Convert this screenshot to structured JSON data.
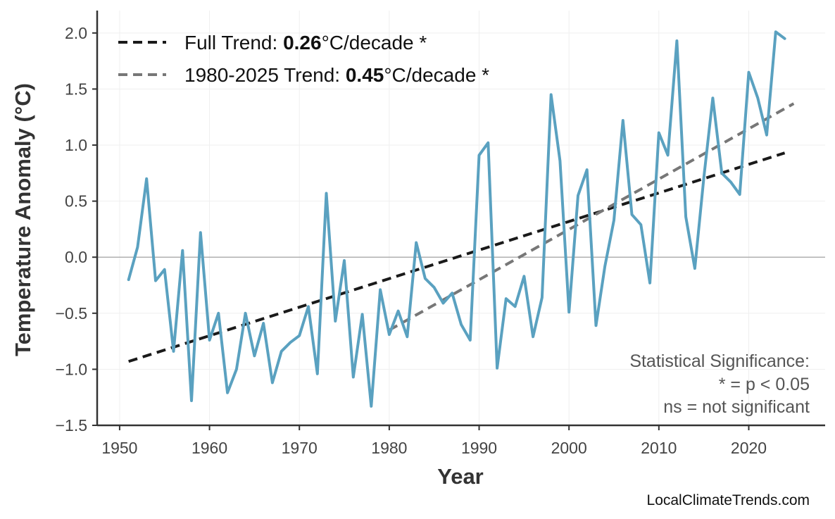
{
  "chart_data": {
    "type": "line",
    "xlabel": "Year",
    "ylabel": "Temperature Anomaly (°C)",
    "xlim": [
      1947.5,
      2028.5
    ],
    "ylim": [
      -1.5,
      2.2
    ],
    "x_ticks": [
      1950,
      1960,
      1970,
      1980,
      1990,
      2000,
      2010,
      2020
    ],
    "y_ticks": [
      -1.5,
      -1.0,
      -0.5,
      0.0,
      0.5,
      1.0,
      1.5,
      2.0
    ],
    "x_tick_labels": [
      "1950",
      "1960",
      "1970",
      "1980",
      "1990",
      "2000",
      "2010",
      "2020"
    ],
    "y_tick_labels": [
      "−1.5",
      "−1.0",
      "−0.5",
      "0.0",
      "0.5",
      "1.0",
      "1.5",
      "2.0"
    ],
    "grid": true,
    "zero_line": true,
    "legend_position": "top-left",
    "series": [
      {
        "type": "line",
        "color": "#5aa1c0",
        "x": [
          1951,
          1952,
          1953,
          1954,
          1955,
          1956,
          1957,
          1958,
          1959,
          1960,
          1961,
          1962,
          1963,
          1964,
          1965,
          1966,
          1967,
          1968,
          1969,
          1970,
          1971,
          1972,
          1973,
          1974,
          1975,
          1976,
          1977,
          1978,
          1979,
          1980,
          1981,
          1982,
          1983,
          1984,
          1985,
          1986,
          1987,
          1988,
          1989,
          1990,
          1991,
          1992,
          1993,
          1994,
          1995,
          1996,
          1997,
          1998,
          1999,
          2000,
          2001,
          2002,
          2003,
          2004,
          2005,
          2006,
          2007,
          2008,
          2009,
          2010,
          2011,
          2012,
          2013,
          2014,
          2015,
          2016,
          2017,
          2018,
          2019,
          2020,
          2021,
          2022,
          2023,
          2024
        ],
        "y": [
          -0.2,
          0.09,
          0.7,
          -0.21,
          -0.11,
          -0.84,
          0.06,
          -1.28,
          0.22,
          -0.74,
          -0.5,
          -1.21,
          -1.0,
          -0.5,
          -0.88,
          -0.59,
          -1.12,
          -0.84,
          -0.76,
          -0.7,
          -0.44,
          -1.04,
          0.57,
          -0.57,
          -0.03,
          -1.07,
          -0.51,
          -1.33,
          -0.29,
          -0.69,
          -0.48,
          -0.71,
          0.13,
          -0.19,
          -0.27,
          -0.41,
          -0.32,
          -0.6,
          -0.74,
          0.91,
          1.02,
          -0.99,
          -0.37,
          -0.44,
          -0.17,
          -0.71,
          -0.36,
          1.45,
          0.86,
          -0.49,
          0.55,
          0.78,
          -0.61,
          -0.08,
          0.33,
          1.22,
          0.38,
          0.29,
          -0.23,
          1.11,
          0.91,
          1.93,
          0.36,
          -0.1,
          0.71,
          1.42,
          0.75,
          0.67,
          0.56,
          1.65,
          1.42,
          1.09,
          2.01,
          1.95
        ]
      },
      {
        "type": "trend",
        "name": "Full Trend: ",
        "value": "0.26",
        "suffix": "°C/decade *",
        "color": "#1a1a1a",
        "x": [
          1951,
          2024
        ],
        "y": [
          -0.93,
          0.93
        ]
      },
      {
        "type": "trend",
        "name": "1980-2025 Trend: ",
        "value": "0.45",
        "suffix": "°C/decade *",
        "color": "#777777",
        "x": [
          1980,
          2025
        ],
        "y": [
          -0.65,
          1.37
        ]
      }
    ],
    "annotations": [
      "Statistical Significance:",
      "* = p < 0.05",
      "ns = not significant"
    ],
    "source": "LocalClimateTrends.com"
  }
}
